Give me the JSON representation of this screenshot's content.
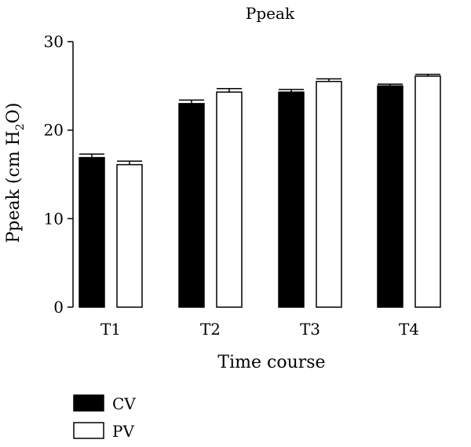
{
  "chart_data": {
    "type": "bar",
    "title": "Ppeak",
    "xlabel": "Time course",
    "ylabel": {
      "main": "Ppeak (cm H",
      "sub": "2",
      "tail": "O)"
    },
    "categories": [
      "T1",
      "T2",
      "T3",
      "T4"
    ],
    "ylim": [
      0,
      30
    ],
    "yticks": [
      0,
      10,
      20,
      30
    ],
    "grid": false,
    "legend_position": "bottom-left",
    "series": [
      {
        "name": "CV",
        "values": [
          16.9,
          23.0,
          24.3,
          25.0
        ],
        "errors": [
          0.4,
          0.4,
          0.3,
          0.2
        ],
        "fill": "#000000"
      },
      {
        "name": "PV",
        "values": [
          16.1,
          24.3,
          25.5,
          26.1
        ],
        "errors": [
          0.4,
          0.4,
          0.3,
          0.2
        ],
        "fill": "#ffffff"
      }
    ]
  }
}
